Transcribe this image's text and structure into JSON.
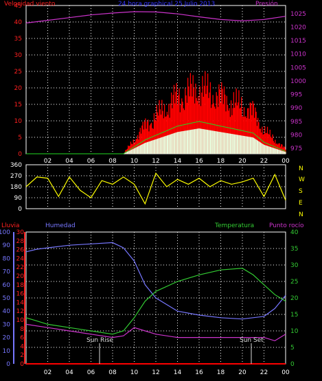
{
  "colors": {
    "wind": "#ff2020",
    "gust": "#ff0000",
    "wind_avg": "#22dd22",
    "wind_light": "#e8ffe0",
    "pressure": "#cc33cc",
    "title": "#3333ff",
    "direction": "#ffff00",
    "rain": "#ff0000",
    "humidity": "#7777ff",
    "temperature": "#33cc33",
    "dewpoint": "#cc33cc",
    "sun": "#dddddd",
    "axis": "#ffffff"
  },
  "top": {
    "title": "24 hora graphical  25 Julio 2013",
    "left_label": "Velocidad viento",
    "right_label": "Presión"
  },
  "middle": {
    "compass": [
      "N",
      "W",
      "S",
      "E",
      "N"
    ]
  },
  "bottom": {
    "rain_label": "Lluvia",
    "humidity_label": "Humedad",
    "temp_label": "Temperatura",
    "dew_label": "Punto rocío",
    "sunrise_label": "Sun Rise",
    "sunset_label": "Sun Set"
  },
  "chart_data": [
    {
      "type": "line",
      "name": "wind_pressure",
      "x_ticks": [
        "02",
        "04",
        "06",
        "08",
        "10",
        "12",
        "14",
        "16",
        "18",
        "20",
        "22",
        "00"
      ],
      "y_left": {
        "ticks": [
          0,
          5,
          10,
          15,
          20,
          25,
          30,
          35,
          40,
          45
        ],
        "range": [
          0,
          45
        ]
      },
      "y_right": {
        "ticks": [
          975,
          980,
          985,
          990,
          995,
          1000,
          1005,
          1010,
          1015,
          1020,
          1025
        ],
        "range": [
          973,
          1028
        ]
      },
      "series": [
        {
          "name": "Velocidad viento",
          "x": [
            0,
            5,
            6,
            8,
            9,
            10,
            11,
            12,
            13,
            14,
            15,
            16,
            17,
            18,
            19,
            20,
            21,
            22,
            23,
            24
          ],
          "y": [
            0,
            0,
            0,
            0,
            0,
            3,
            6,
            8,
            10,
            12,
            13,
            14,
            13,
            12,
            11,
            10,
            9,
            5,
            3,
            1
          ]
        },
        {
          "name": "Presión",
          "x": [
            0,
            2,
            4,
            6,
            8,
            10,
            12,
            14,
            16,
            18,
            20,
            22,
            24
          ],
          "y": [
            1021.5,
            1022.5,
            1023.5,
            1024.5,
            1025.2,
            1025.7,
            1025.6,
            1024.9,
            1023.8,
            1022.8,
            1022.3,
            1022.8,
            1024
          ]
        }
      ]
    },
    {
      "type": "line",
      "name": "direction",
      "y_ticks": [
        0,
        90,
        180,
        270,
        360
      ],
      "series": [
        {
          "name": "direction",
          "x": [
            0,
            1,
            2,
            3,
            4,
            5,
            6,
            7,
            8,
            9,
            10,
            11,
            12,
            13,
            14,
            15,
            16,
            17,
            18,
            19,
            20,
            21,
            22,
            23,
            24
          ],
          "y": [
            180,
            260,
            250,
            100,
            260,
            150,
            90,
            230,
            200,
            260,
            200,
            40,
            290,
            180,
            240,
            200,
            250,
            180,
            230,
            200,
            220,
            250,
            100,
            280,
            70
          ]
        }
      ]
    },
    {
      "type": "line",
      "name": "rain_humidity_temp",
      "y_rain": {
        "ticks": [
          0,
          2,
          4,
          6,
          8,
          10,
          12,
          14,
          16,
          18,
          20,
          22,
          24,
          26,
          28,
          30
        ],
        "range": [
          0,
          30
        ]
      },
      "y_humidity": {
        "ticks": [
          0,
          10,
          20,
          30,
          40,
          50,
          60,
          70,
          80,
          90,
          100
        ],
        "range": [
          0,
          100
        ]
      },
      "y_temp": {
        "ticks": [
          0,
          5,
          10,
          15,
          20,
          25,
          30,
          35,
          40
        ],
        "range": [
          0,
          40
        ]
      },
      "series": [
        {
          "name": "Lluvia",
          "x": [
            0,
            24
          ],
          "y": [
            0,
            0
          ]
        },
        {
          "name": "Humedad",
          "x": [
            0,
            1,
            2,
            4,
            6,
            8,
            9,
            10,
            11,
            12,
            14,
            16,
            18,
            20,
            22,
            23,
            24
          ],
          "y": [
            85,
            87,
            88,
            90,
            91,
            92,
            88,
            78,
            60,
            50,
            40,
            37,
            35,
            34,
            36,
            42,
            52
          ]
        },
        {
          "name": "Temperatura",
          "x": [
            0,
            1,
            2,
            4,
            6,
            8,
            9,
            10,
            11,
            12,
            14,
            16,
            18,
            20,
            21,
            22,
            23,
            24
          ],
          "y": [
            14,
            13,
            12,
            11,
            10,
            9,
            10,
            14,
            19,
            22,
            25,
            27,
            28.5,
            29,
            27,
            24,
            21,
            19
          ]
        },
        {
          "name": "Punto rocío",
          "x": [
            0,
            2,
            4,
            6,
            8,
            9,
            10,
            11,
            12,
            14,
            16,
            18,
            20,
            22,
            23,
            24
          ],
          "y": [
            12,
            11,
            10,
            9,
            8,
            8.5,
            11,
            10,
            9,
            8,
            8,
            8,
            8,
            8,
            7,
            9
          ]
        }
      ]
    }
  ]
}
